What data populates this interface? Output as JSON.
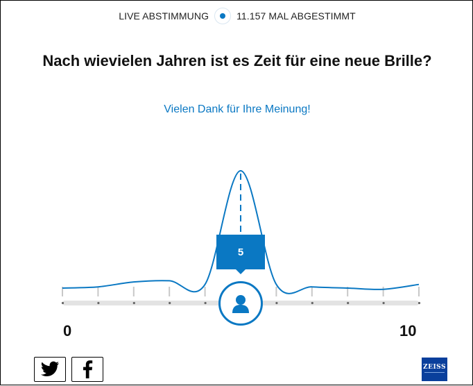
{
  "header": {
    "live_label": "LIVE ABSTIMMUNG",
    "vote_count_label": "11.157 MAL ABGESTIMMT"
  },
  "poll": {
    "question": "Nach wievielen Jahren ist es Zeit für eine neue Brille?",
    "thanks": "Vielen Dank für Ihre Meinung!",
    "selected_value": "5",
    "min_label": "0",
    "max_label": "10"
  },
  "distribution": {
    "x": [
      0,
      1,
      2,
      3,
      4,
      5,
      6,
      7,
      8,
      9,
      10
    ],
    "relative_votes": [
      0.04,
      0.05,
      0.09,
      0.1,
      0.07,
      1.0,
      0.07,
      0.05,
      0.04,
      0.03,
      0.07
    ]
  },
  "social": {
    "twitter_icon": "twitter-icon",
    "facebook_icon": "facebook-icon"
  },
  "brand": {
    "logo_text": "ZEISS",
    "accent_color": "#0a78c3",
    "logo_color": "#0a3f9c"
  }
}
